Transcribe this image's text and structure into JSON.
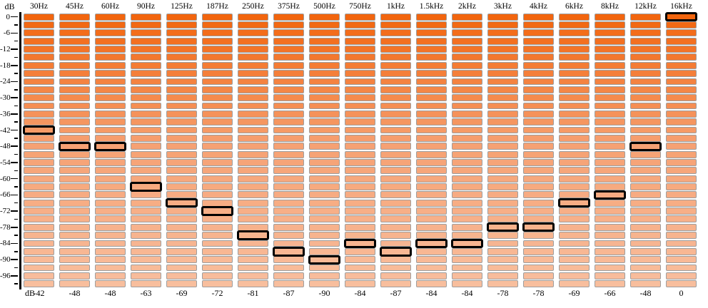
{
  "axis": {
    "unit_label": "dB",
    "max_db": 0,
    "min_db": -99,
    "major_step_db": 6,
    "minor_step_db": 3,
    "segment_step_db": 3,
    "major_tick_labels": [
      "0",
      "-6",
      "-12",
      "-18",
      "-24",
      "-30",
      "-36",
      "-42",
      "-48",
      "-54",
      "-60",
      "-66",
      "-72",
      "-78",
      "-84",
      "-90",
      "-96"
    ]
  },
  "bands": [
    {
      "label": "30Hz",
      "value": -42,
      "value_label": "-42"
    },
    {
      "label": "45Hz",
      "value": -48,
      "value_label": "-48"
    },
    {
      "label": "60Hz",
      "value": -48,
      "value_label": "-48"
    },
    {
      "label": "90Hz",
      "value": -63,
      "value_label": "-63"
    },
    {
      "label": "125Hz",
      "value": -69,
      "value_label": "-69"
    },
    {
      "label": "187Hz",
      "value": -72,
      "value_label": "-72"
    },
    {
      "label": "250Hz",
      "value": -81,
      "value_label": "-81"
    },
    {
      "label": "375Hz",
      "value": -87,
      "value_label": "-87"
    },
    {
      "label": "500Hz",
      "value": -90,
      "value_label": "-90"
    },
    {
      "label": "750Hz",
      "value": -84,
      "value_label": "-84"
    },
    {
      "label": "1kHz",
      "value": -87,
      "value_label": "-87"
    },
    {
      "label": "1.5kHz",
      "value": -84,
      "value_label": "-84"
    },
    {
      "label": "2kHz",
      "value": -84,
      "value_label": "-84"
    },
    {
      "label": "3kHz",
      "value": -78,
      "value_label": "-78"
    },
    {
      "label": "4kHz",
      "value": -78,
      "value_label": "-78"
    },
    {
      "label": "6kHz",
      "value": -69,
      "value_label": "-69"
    },
    {
      "label": "8kHz",
      "value": -66,
      "value_label": "-66"
    },
    {
      "label": "12kHz",
      "value": -48,
      "value_label": "-48"
    },
    {
      "label": "16kHz",
      "value": 0,
      "value_label": "0"
    }
  ],
  "colors": {
    "segment_top": "#F2650E",
    "segment_mid": "#F6A173",
    "segment_bottom": "#F8BE9D",
    "segment_border": "#9E9E9E",
    "handle_border": "#000000",
    "axis": "#000000",
    "background": "#FFFFFF"
  },
  "chart_data": {
    "type": "bar",
    "title": "",
    "xlabel": "",
    "ylabel": "dB",
    "ylim": [
      -99,
      0
    ],
    "categories": [
      "30Hz",
      "45Hz",
      "60Hz",
      "90Hz",
      "125Hz",
      "187Hz",
      "250Hz",
      "375Hz",
      "500Hz",
      "750Hz",
      "1kHz",
      "1.5kHz",
      "2kHz",
      "3kHz",
      "4kHz",
      "6kHz",
      "8kHz",
      "12kHz",
      "16kHz"
    ],
    "values": [
      -42,
      -48,
      -48,
      -63,
      -69,
      -72,
      -81,
      -87,
      -90,
      -84,
      -87,
      -84,
      -84,
      -78,
      -78,
      -69,
      -66,
      -48,
      0
    ]
  }
}
